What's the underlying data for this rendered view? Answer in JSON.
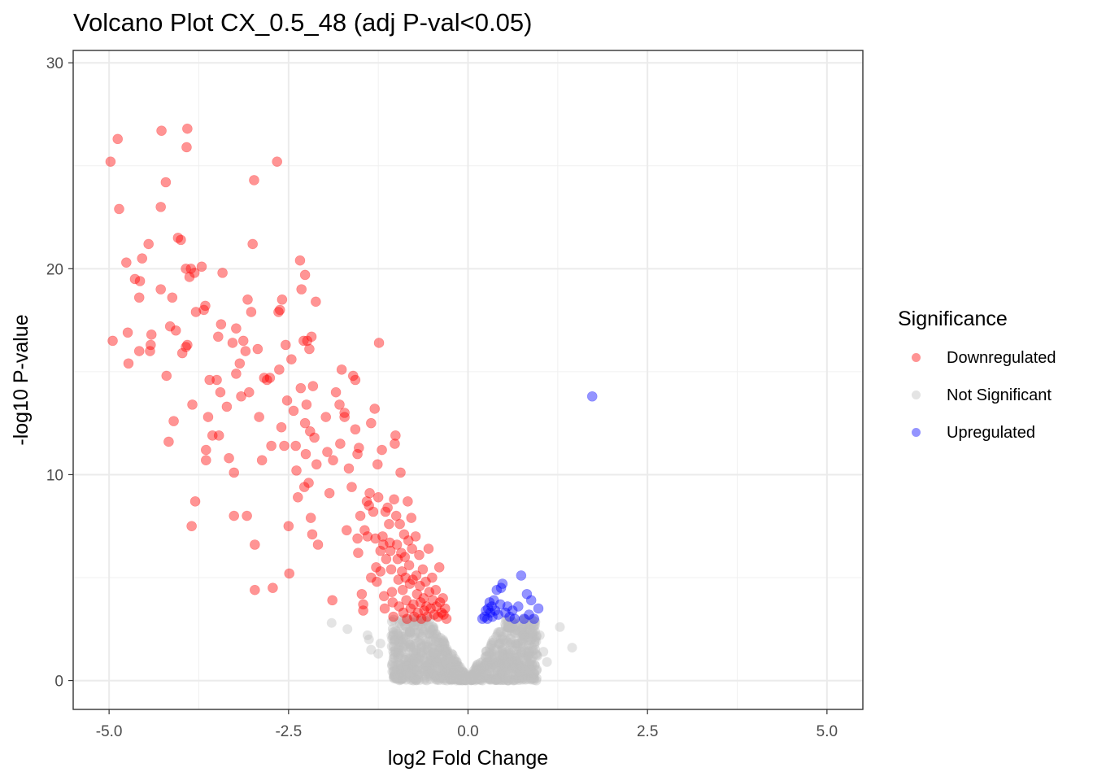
{
  "chart_data": {
    "type": "scatter",
    "title": "Volcano Plot CX_0.5_48 (adj P-val<0.05)",
    "xlabel": "log2 Fold Change",
    "ylabel": "-log10 P-value",
    "xlim": [
      -5.5,
      5.5
    ],
    "ylim": [
      -1.4,
      30.6
    ],
    "x_ticks": [
      -5.0,
      -2.5,
      0.0,
      2.5,
      5.0
    ],
    "x_tick_labels": [
      "-5.0",
      "-2.5",
      "0.0",
      "2.5",
      "5.0"
    ],
    "y_ticks": [
      0,
      10,
      20,
      30
    ],
    "y_tick_labels": [
      "0",
      "10",
      "20",
      "30"
    ],
    "grid": true,
    "legend": {
      "title": "Significance",
      "placement": "right",
      "entries": [
        {
          "name": "Downregulated",
          "color": "#ff0000"
        },
        {
          "name": "Not Significant",
          "color": "#bebebe"
        },
        {
          "name": "Upregulated",
          "color": "#0000ff"
        }
      ]
    },
    "series": [
      {
        "name": "Downregulated",
        "color": "#ff0000",
        "points": [
          [
            -4.98,
            25.2
          ],
          [
            -4.88,
            26.3
          ],
          [
            -4.86,
            22.9
          ],
          [
            -4.95,
            16.5
          ],
          [
            -4.76,
            20.3
          ],
          [
            -4.74,
            16.9
          ],
          [
            -4.73,
            15.4
          ],
          [
            -4.64,
            19.5
          ],
          [
            -4.58,
            18.6
          ],
          [
            -4.57,
            19.4
          ],
          [
            -4.54,
            20.5
          ],
          [
            -4.58,
            16.0
          ],
          [
            -4.45,
            21.2
          ],
          [
            -4.43,
            16.0
          ],
          [
            -4.42,
            16.3
          ],
          [
            -4.41,
            16.8
          ],
          [
            -4.27,
            26.7
          ],
          [
            -4.28,
            23.0
          ],
          [
            -4.28,
            19.0
          ],
          [
            -4.21,
            24.2
          ],
          [
            -4.2,
            14.8
          ],
          [
            -4.17,
            11.6
          ],
          [
            -4.15,
            17.2
          ],
          [
            -4.1,
            12.6
          ],
          [
            -4.12,
            18.6
          ],
          [
            -4.07,
            17.0
          ],
          [
            -4.04,
            21.5
          ],
          [
            -4.0,
            21.4
          ],
          [
            -3.98,
            15.9
          ],
          [
            -3.93,
            20.0
          ],
          [
            -3.93,
            16.2
          ],
          [
            -3.91,
            26.8
          ],
          [
            -3.92,
            25.9
          ],
          [
            -3.91,
            16.3
          ],
          [
            -3.88,
            19.6
          ],
          [
            -3.86,
            20.0
          ],
          [
            -3.85,
            7.5
          ],
          [
            -3.84,
            13.4
          ],
          [
            -3.81,
            19.8
          ],
          [
            -3.8,
            8.7
          ],
          [
            -3.79,
            17.9
          ],
          [
            -3.71,
            20.1
          ],
          [
            -3.68,
            18.0
          ],
          [
            -3.66,
            18.2
          ],
          [
            -3.65,
            11.2
          ],
          [
            -3.65,
            10.7
          ],
          [
            -3.62,
            12.8
          ],
          [
            -3.6,
            14.6
          ],
          [
            -3.56,
            11.9
          ],
          [
            -3.5,
            14.6
          ],
          [
            -3.48,
            16.7
          ],
          [
            -3.47,
            11.9
          ],
          [
            -3.44,
            17.3
          ],
          [
            -3.42,
            19.8
          ],
          [
            -3.45,
            14.0
          ],
          [
            -3.36,
            13.3
          ],
          [
            -3.33,
            10.8
          ],
          [
            -3.28,
            16.4
          ],
          [
            -3.23,
            14.9
          ],
          [
            -3.26,
            10.1
          ],
          [
            -3.26,
            8.0
          ],
          [
            -3.23,
            17.1
          ],
          [
            -3.18,
            15.4
          ],
          [
            -3.16,
            13.8
          ],
          [
            -3.13,
            16.5
          ],
          [
            -3.1,
            16.0
          ],
          [
            -3.08,
            8.0
          ],
          [
            -3.07,
            18.5
          ],
          [
            -3.05,
            14.0
          ],
          [
            -3.02,
            17.9
          ],
          [
            -3.0,
            21.2
          ],
          [
            -2.98,
            24.3
          ],
          [
            -2.97,
            6.6
          ],
          [
            -2.97,
            4.4
          ],
          [
            -2.93,
            16.1
          ],
          [
            -2.91,
            12.8
          ],
          [
            -2.87,
            10.7
          ],
          [
            -2.84,
            14.7
          ],
          [
            -2.8,
            14.6
          ],
          [
            -2.76,
            14.7
          ],
          [
            -2.74,
            11.4
          ],
          [
            -2.72,
            4.5
          ],
          [
            -2.66,
            25.2
          ],
          [
            -2.64,
            17.9
          ],
          [
            -2.63,
            15.1
          ],
          [
            -2.62,
            18.0
          ],
          [
            -2.6,
            12.3
          ],
          [
            -2.59,
            18.5
          ],
          [
            -2.56,
            11.4
          ],
          [
            -2.54,
            16.3
          ],
          [
            -2.52,
            13.6
          ],
          [
            -2.5,
            7.5
          ],
          [
            -2.49,
            5.2
          ],
          [
            -2.46,
            15.6
          ],
          [
            -2.43,
            13.1
          ],
          [
            -2.4,
            11.4
          ],
          [
            -2.39,
            10.2
          ],
          [
            -2.37,
            8.9
          ],
          [
            -2.34,
            20.4
          ],
          [
            -2.33,
            14.2
          ],
          [
            -2.32,
            19.0
          ],
          [
            -2.29,
            16.5
          ],
          [
            -2.28,
            9.4
          ],
          [
            -2.27,
            19.7
          ],
          [
            -2.27,
            12.5
          ],
          [
            -2.26,
            11.0
          ],
          [
            -2.25,
            13.4
          ],
          [
            -2.24,
            16.5
          ],
          [
            -2.22,
            9.6
          ],
          [
            -2.21,
            16.1
          ],
          [
            -2.2,
            12.1
          ],
          [
            -2.19,
            7.9
          ],
          [
            -2.18,
            16.7
          ],
          [
            -2.17,
            7.1
          ],
          [
            -2.16,
            14.3
          ],
          [
            -2.14,
            11.8
          ],
          [
            -2.12,
            18.4
          ],
          [
            -2.11,
            10.5
          ],
          [
            -2.09,
            6.6
          ],
          [
            -1.98,
            12.8
          ],
          [
            -1.96,
            11.1
          ],
          [
            -1.93,
            9.1
          ],
          [
            -1.89,
            3.9
          ],
          [
            -1.88,
            10.7
          ],
          [
            -1.84,
            14.0
          ],
          [
            -1.79,
            13.4
          ],
          [
            -1.78,
            11.5
          ],
          [
            -1.76,
            15.1
          ],
          [
            -1.72,
            12.8
          ],
          [
            -1.72,
            13.0
          ],
          [
            -1.69,
            7.3
          ],
          [
            -1.66,
            10.3
          ],
          [
            -1.62,
            9.4
          ],
          [
            -1.6,
            14.8
          ],
          [
            -1.57,
            14.6
          ],
          [
            -1.57,
            12.2
          ],
          [
            -1.54,
            11.0
          ],
          [
            -1.54,
            6.9
          ],
          [
            -1.53,
            6.2
          ],
          [
            -1.52,
            11.3
          ],
          [
            -1.5,
            8.0
          ],
          [
            -1.48,
            4.2
          ],
          [
            -1.46,
            3.7
          ],
          [
            -1.46,
            3.4
          ],
          [
            -1.44,
            7.3
          ],
          [
            -1.41,
            8.7
          ],
          [
            -1.4,
            7.0
          ],
          [
            -1.38,
            8.5
          ],
          [
            -1.37,
            9.1
          ],
          [
            -1.35,
            12.5
          ],
          [
            -1.35,
            5.0
          ],
          [
            -1.32,
            8.2
          ],
          [
            -1.3,
            13.2
          ],
          [
            -1.29,
            6.9
          ],
          [
            -1.28,
            5.5
          ],
          [
            -1.27,
            4.8
          ],
          [
            -1.26,
            10.5
          ],
          [
            -1.25,
            8.9
          ],
          [
            -1.24,
            16.4
          ],
          [
            -1.22,
            6.3
          ],
          [
            -1.22,
            5.3
          ],
          [
            -1.2,
            11.2
          ],
          [
            -1.19,
            7.0
          ],
          [
            -1.18,
            6.6
          ],
          [
            -1.17,
            4.1
          ],
          [
            -1.16,
            3.5
          ],
          [
            -1.15,
            8.2
          ],
          [
            -1.14,
            5.9
          ],
          [
            -1.12,
            8.4
          ],
          [
            -1.1,
            7.6
          ],
          [
            -1.09,
            6.7
          ],
          [
            -1.08,
            6.3
          ],
          [
            -1.07,
            5.4
          ],
          [
            -1.06,
            4.3
          ],
          [
            -1.05,
            3.8
          ],
          [
            -1.04,
            3.1
          ],
          [
            -1.03,
            8.8
          ],
          [
            -1.02,
            11.5
          ],
          [
            -1.01,
            11.9
          ],
          [
            -1.0,
            8.0
          ],
          [
            -0.99,
            6.6
          ],
          [
            -0.98,
            5.9
          ],
          [
            -0.97,
            4.9
          ],
          [
            -0.96,
            3.6
          ],
          [
            -0.95,
            7.6
          ],
          [
            -0.94,
            10.1
          ],
          [
            -0.93,
            6.2
          ],
          [
            -0.92,
            5.3
          ],
          [
            -0.91,
            4.4
          ],
          [
            -0.9,
            3.3
          ],
          [
            -0.89,
            7.1
          ],
          [
            -0.88,
            6.0
          ],
          [
            -0.87,
            5.0
          ],
          [
            -0.86,
            3.9
          ],
          [
            -0.85,
            3.0
          ],
          [
            -0.84,
            8.7
          ],
          [
            -0.83,
            6.8
          ],
          [
            -0.82,
            5.6
          ],
          [
            -0.81,
            4.7
          ],
          [
            -0.8,
            3.5
          ],
          [
            -0.79,
            7.9
          ],
          [
            -0.78,
            6.4
          ],
          [
            -0.77,
            4.9
          ],
          [
            -0.76,
            3.7
          ],
          [
            -0.75,
            3.1
          ],
          [
            -0.73,
            7.0
          ],
          [
            -0.72,
            5.1
          ],
          [
            -0.71,
            4.2
          ],
          [
            -0.7,
            3.3
          ],
          [
            -0.68,
            6.1
          ],
          [
            -0.67,
            4.6
          ],
          [
            -0.66,
            3.8
          ],
          [
            -0.65,
            3.0
          ],
          [
            -0.63,
            5.4
          ],
          [
            -0.62,
            4.0
          ],
          [
            -0.61,
            3.4
          ],
          [
            -0.59,
            4.8
          ],
          [
            -0.58,
            3.6
          ],
          [
            -0.57,
            3.1
          ],
          [
            -0.55,
            6.4
          ],
          [
            -0.54,
            4.3
          ],
          [
            -0.52,
            3.5
          ],
          [
            -0.5,
            5.0
          ],
          [
            -0.49,
            3.9
          ],
          [
            -0.47,
            3.2
          ],
          [
            -0.45,
            4.4
          ],
          [
            -0.44,
            3.6
          ],
          [
            -0.42,
            3.1
          ],
          [
            -0.4,
            5.5
          ],
          [
            -0.39,
            3.8
          ],
          [
            -0.37,
            3.3
          ],
          [
            -0.35,
            4.0
          ],
          [
            -0.34,
            3.2
          ],
          [
            -0.32,
            3.5
          ],
          [
            -0.3,
            3.0
          ]
        ]
      },
      {
        "name": "Upregulated",
        "color": "#0000ff",
        "points": [
          [
            1.73,
            13.8
          ],
          [
            0.74,
            5.1
          ],
          [
            0.62,
            3.4
          ],
          [
            0.65,
            3.0
          ],
          [
            0.58,
            3.1
          ],
          [
            0.55,
            3.6
          ],
          [
            0.52,
            3.3
          ],
          [
            0.48,
            4.7
          ],
          [
            0.46,
            4.5
          ],
          [
            0.45,
            3.7
          ],
          [
            0.42,
            3.2
          ],
          [
            0.4,
            4.4
          ],
          [
            0.38,
            3.4
          ],
          [
            0.36,
            3.9
          ],
          [
            0.34,
            3.1
          ],
          [
            0.33,
            3.6
          ],
          [
            0.31,
            3.3
          ],
          [
            0.3,
            3.8
          ],
          [
            0.28,
            3.5
          ],
          [
            0.27,
            3.0
          ],
          [
            0.25,
            3.4
          ],
          [
            0.23,
            3.1
          ],
          [
            0.2,
            3.0
          ],
          [
            0.82,
            4.2
          ],
          [
            0.85,
            3.2
          ],
          [
            0.88,
            3.9
          ],
          [
            0.92,
            3.0
          ],
          [
            0.98,
            3.5
          ],
          [
            0.78,
            3.0
          ],
          [
            0.7,
            3.6
          ]
        ]
      }
    ],
    "not_significant_summary": "dense cloud of thousands of points near x between -1.5 and 1.5, y between 0 and 3",
    "not_significant_outliers": [
      [
        -1.9,
        2.8
      ],
      [
        -1.68,
        2.5
      ],
      [
        -1.4,
        2.2
      ],
      [
        -1.38,
        2.0
      ],
      [
        -1.35,
        1.5
      ],
      [
        -1.25,
        1.3
      ],
      [
        -1.22,
        1.8
      ],
      [
        1.28,
        2.6
      ],
      [
        1.45,
        1.6
      ],
      [
        1.1,
        0.9
      ],
      [
        1.05,
        1.4
      ],
      [
        1.0,
        2.2
      ],
      [
        0.95,
        1.9
      ],
      [
        0.9,
        2.4
      ]
    ]
  }
}
